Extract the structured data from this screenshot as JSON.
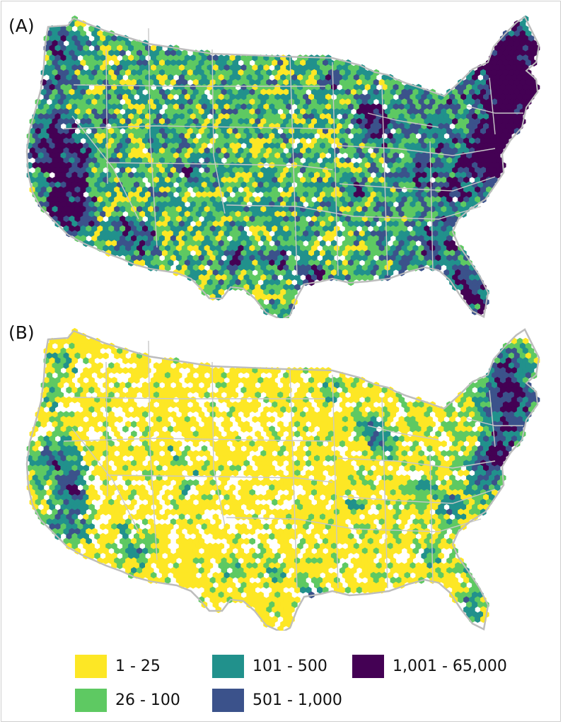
{
  "panels": [
    {
      "id": "A",
      "label": "(A)",
      "seed": 11,
      "profile": "dense"
    },
    {
      "id": "B",
      "label": "(B)",
      "seed": 37,
      "profile": "sparse"
    }
  ],
  "legend": {
    "items": [
      {
        "label": "1 - 25",
        "color": "#fde725"
      },
      {
        "label": "26 - 100",
        "color": "#5ec962"
      },
      {
        "label": "101 - 500",
        "color": "#21918c"
      },
      {
        "label": "501 - 1,000",
        "color": "#3b528b"
      },
      {
        "label": "1,001 - 65,000",
        "color": "#440154"
      }
    ]
  },
  "colors": {
    "no_data": "#ffffff",
    "state_border": "#c8c8c8",
    "outline": "#bdbdbd"
  }
}
